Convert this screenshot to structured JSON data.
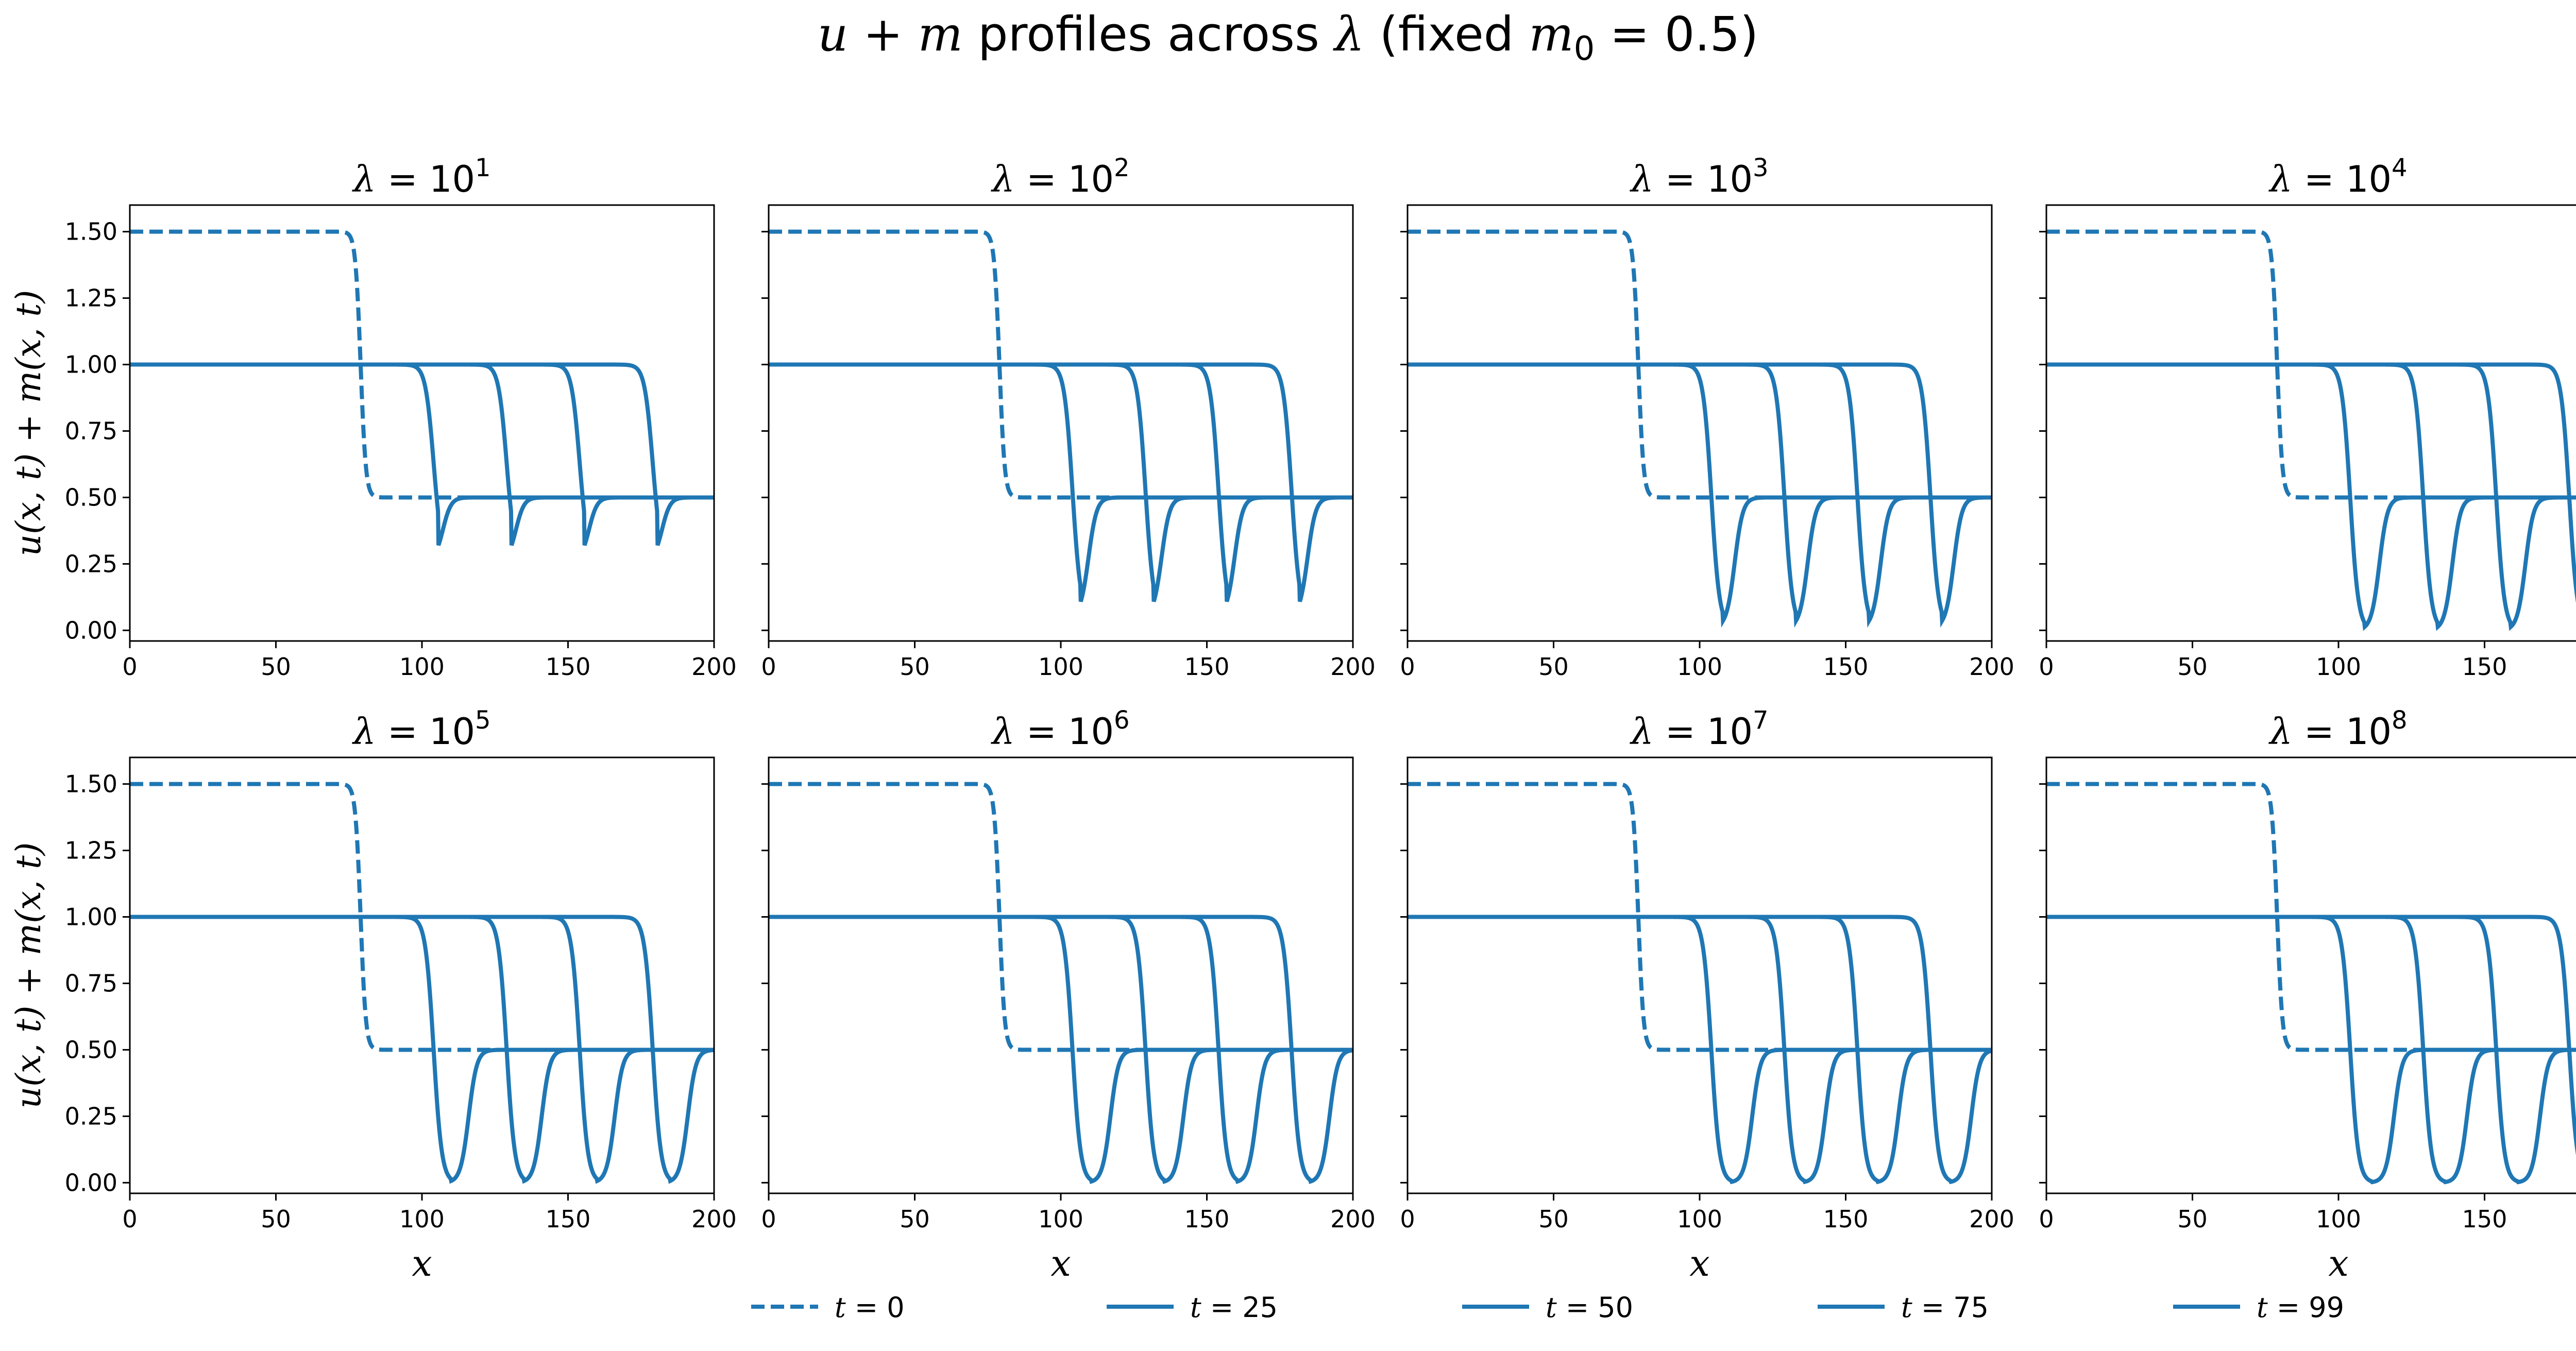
{
  "figure": {
    "title": "u + m profiles across λ  (fixed m₀ = 0.5)",
    "title_parts": {
      "pre": "u + m",
      "mid": " profiles across ",
      "lam": "λ",
      "paren_open": "  (fixed ",
      "m": "m",
      "sub0": "0",
      "eq": " = 0.5)"
    },
    "line_color": "#1f77b4"
  },
  "chart_data": [
    {
      "type": "line",
      "title": "λ = 10^1",
      "exp": "1",
      "xlabel": "",
      "ylabel": "u(x, t) + m(x, t)",
      "xlim": [
        0,
        200
      ],
      "ylim": [
        -0.04,
        1.6
      ],
      "dip_min": 0.26,
      "dip_width": 3.2
    },
    {
      "type": "line",
      "title": "λ = 10^2",
      "exp": "2",
      "xlabel": "",
      "ylabel": "",
      "xlim": [
        0,
        200
      ],
      "ylim": [
        -0.04,
        1.6
      ],
      "dip_min": 0.05,
      "dip_width": 5.5
    },
    {
      "type": "line",
      "title": "λ = 10^3",
      "exp": "3",
      "xlabel": "",
      "ylabel": "",
      "xlim": [
        0,
        200
      ],
      "ylim": [
        -0.04,
        1.6
      ],
      "dip_min": 0.01,
      "dip_width": 8
    },
    {
      "type": "line",
      "title": "λ = 10^4",
      "exp": "4",
      "xlabel": "",
      "ylabel": "",
      "xlim": [
        0,
        200
      ],
      "ylim": [
        -0.04,
        1.6
      ],
      "dip_min": 0.0,
      "dip_width": 10
    },
    {
      "type": "line",
      "title": "λ = 10^5",
      "exp": "5",
      "xlabel": "x",
      "ylabel": "u(x, t) + m(x, t)",
      "xlim": [
        0,
        200
      ],
      "ylim": [
        -0.04,
        1.6
      ],
      "dip_min": 0.0,
      "dip_width": 12
    },
    {
      "type": "line",
      "title": "λ = 10^6",
      "exp": "6",
      "xlabel": "x",
      "ylabel": "",
      "xlim": [
        0,
        200
      ],
      "ylim": [
        -0.04,
        1.6
      ],
      "dip_min": 0.0,
      "dip_width": 13
    },
    {
      "type": "line",
      "title": "λ = 10^7",
      "exp": "7",
      "xlabel": "x",
      "ylabel": "",
      "xlim": [
        0,
        200
      ],
      "ylim": [
        -0.04,
        1.6
      ],
      "dip_min": 0.0,
      "dip_width": 14
    },
    {
      "type": "line",
      "title": "λ = 10^8",
      "exp": "8",
      "xlabel": "x",
      "ylabel": "",
      "xlim": [
        0,
        200
      ],
      "ylim": [
        -0.04,
        1.6
      ],
      "dip_min": 0.0,
      "dip_width": 15
    }
  ],
  "axes": {
    "x_ticks": [
      0,
      50,
      100,
      150,
      200
    ],
    "x_tick_labels": [
      "0",
      "50",
      "100",
      "150",
      "200"
    ],
    "y_ticks": [
      0,
      0.25,
      0.5,
      0.75,
      1.0,
      1.25,
      1.5
    ],
    "y_tick_labels": [
      "0.00",
      "0.25",
      "0.50",
      "0.75",
      "1.00",
      "1.25",
      "1.50"
    ]
  },
  "series_info": {
    "initial_high": 1.5,
    "initial_low": 0.5,
    "initial_front": 79,
    "plateau": 1.0,
    "low": 0.5,
    "fronts": [
      104,
      129,
      154,
      179
    ]
  },
  "legend": [
    {
      "label": "t = 0",
      "t": "0",
      "dashed": true
    },
    {
      "label": "t = 25",
      "t": "25",
      "dashed": false
    },
    {
      "label": "t = 50",
      "t": "50",
      "dashed": false
    },
    {
      "label": "t = 75",
      "t": "75",
      "dashed": false
    },
    {
      "label": "t = 99",
      "t": "99",
      "dashed": false
    }
  ]
}
